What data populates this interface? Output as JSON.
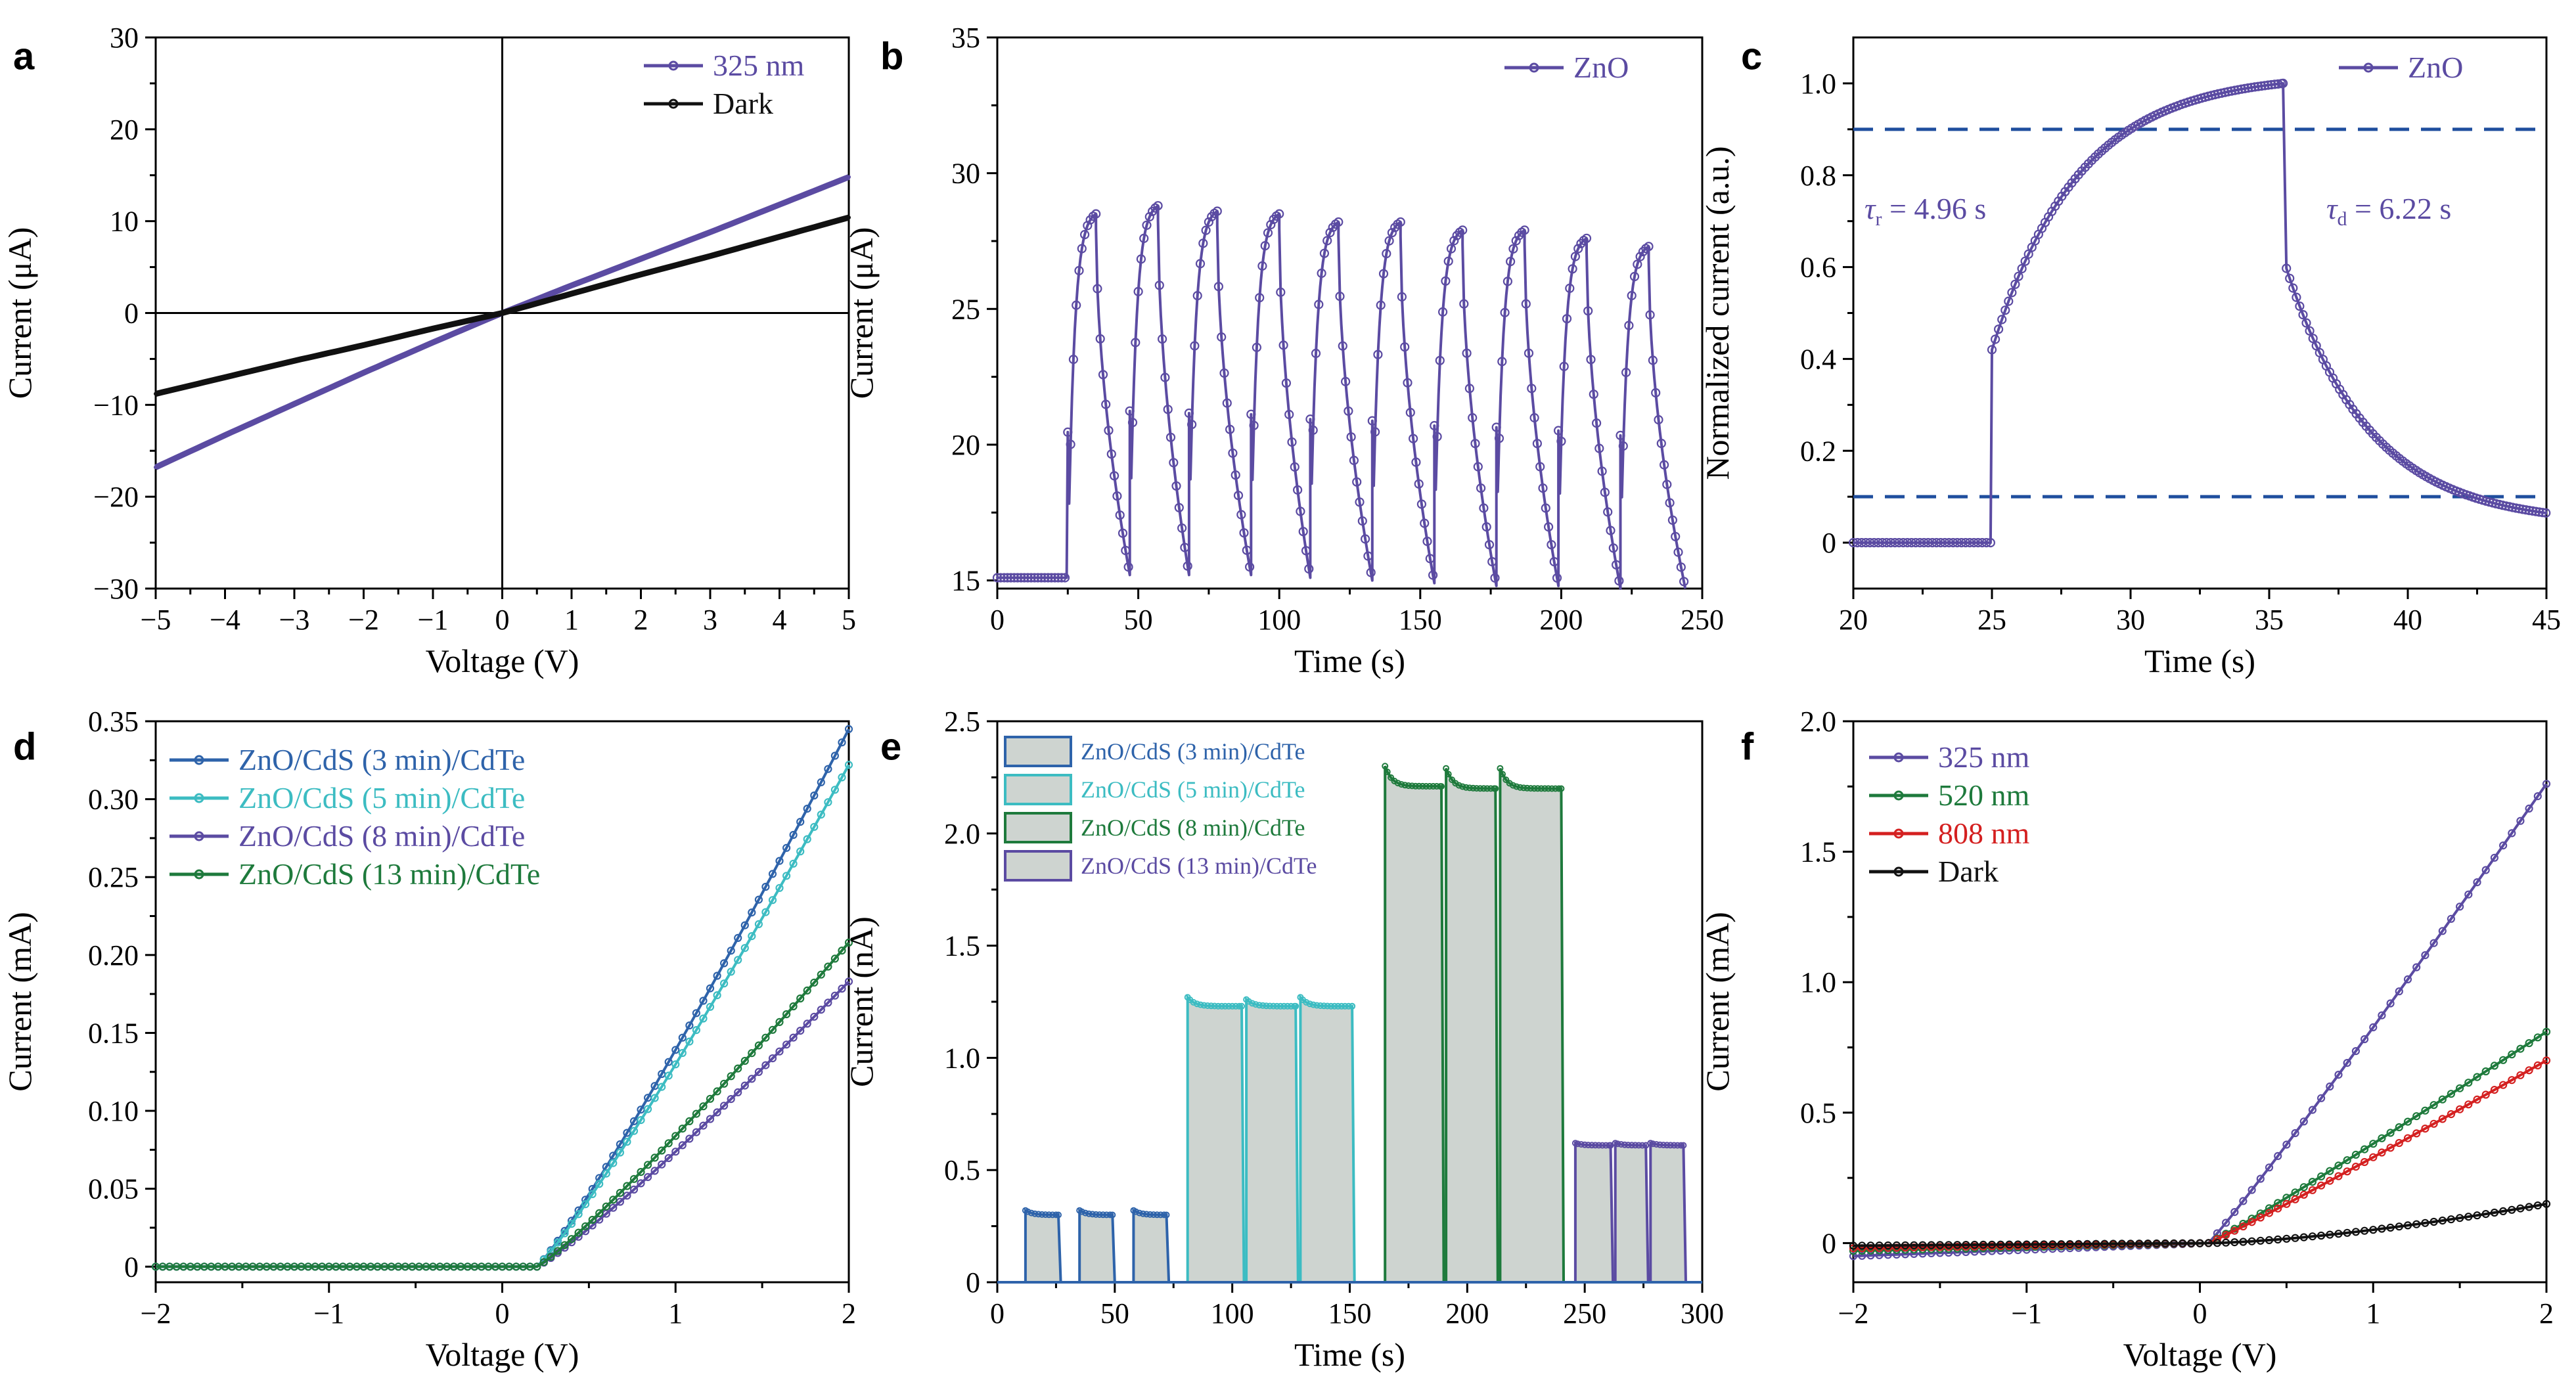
{
  "colors": {
    "purple": "#5B4BA2",
    "black": "#111111",
    "green": "#1E7A3C",
    "red": "#D42020",
    "blue": "#2E63AA",
    "teal": "#3CBCC2",
    "dash": "#1F4E9E",
    "fill": "#C9CFCB"
  },
  "chart_data": [
    {
      "panel": "a",
      "type": "line",
      "xlabel": "Voltage (V)",
      "ylabel": "Current (μA)",
      "xlim": [
        -5,
        5
      ],
      "ylim": [
        -30,
        30
      ],
      "xticks": [
        -5,
        -4,
        -3,
        -2,
        -1,
        0,
        1,
        2,
        3,
        4,
        5
      ],
      "xtick_labels": [
        "−5",
        "−4",
        "−3",
        "−2",
        "−1",
        "0",
        "1",
        "2",
        "3",
        "4",
        "5"
      ],
      "yticks": [
        -30,
        -20,
        -10,
        0,
        10,
        20,
        30
      ],
      "ytick_labels": [
        "−30",
        "−20",
        "−10",
        "0",
        "10",
        "20",
        "30"
      ],
      "series": [
        {
          "name": "325 nm",
          "color": "#5B4BA2",
          "x": [
            -5,
            -4,
            -3,
            -2,
            -1,
            0,
            1,
            2,
            3,
            4,
            5
          ],
          "y": [
            -16.8,
            -13.3,
            -9.9,
            -6.5,
            -3.2,
            0,
            3.0,
            5.9,
            8.8,
            11.8,
            14.8
          ]
        },
        {
          "name": "Dark",
          "color": "#111111",
          "x": [
            -5,
            -4,
            -3,
            -2,
            -1,
            0,
            1,
            2,
            3,
            4,
            5
          ],
          "y": [
            -8.8,
            -7.0,
            -5.2,
            -3.5,
            -1.7,
            0,
            2.1,
            4.2,
            6.2,
            8.3,
            10.4
          ]
        }
      ]
    },
    {
      "panel": "b",
      "type": "line",
      "xlabel": "Time (s)",
      "ylabel": "Current (μA)",
      "xlim": [
        0,
        250
      ],
      "ylim": [
        14.7,
        35
      ],
      "xticks": [
        0,
        50,
        100,
        150,
        200,
        250
      ],
      "xtick_labels": [
        "0",
        "50",
        "100",
        "150",
        "200",
        "250"
      ],
      "yticks": [
        15,
        20,
        25,
        30,
        35
      ],
      "ytick_labels": [
        "15",
        "20",
        "25",
        "30",
        "35"
      ],
      "baseline": 15.1,
      "pulses": [
        {
          "on": 25,
          "off": 35,
          "peak": 28.5,
          "end": 15.2
        },
        {
          "on": 47,
          "off": 57,
          "peak": 28.8,
          "end": 15.2
        },
        {
          "on": 68,
          "off": 78,
          "peak": 28.6,
          "end": 15.2
        },
        {
          "on": 90,
          "off": 100,
          "peak": 28.5,
          "end": 15.1
        },
        {
          "on": 111,
          "off": 121,
          "peak": 28.2,
          "end": 15.0
        },
        {
          "on": 133,
          "off": 143,
          "peak": 28.2,
          "end": 14.9
        },
        {
          "on": 155,
          "off": 165,
          "peak": 27.9,
          "end": 14.8
        },
        {
          "on": 177,
          "off": 187,
          "peak": 27.9,
          "end": 14.8
        },
        {
          "on": 199,
          "off": 209,
          "peak": 27.6,
          "end": 14.7
        },
        {
          "on": 221,
          "off": 231,
          "peak": 27.3,
          "end": 14.7
        }
      ],
      "series": [
        {
          "name": "ZnO",
          "color": "#5B4BA2"
        }
      ]
    },
    {
      "panel": "c",
      "type": "line",
      "xlabel": "Time (s)",
      "ylabel": "Normalized current (a.u.)",
      "xlim": [
        20,
        45
      ],
      "ylim": [
        -0.1,
        1.1
      ],
      "xticks": [
        20,
        25,
        30,
        35,
        40,
        45
      ],
      "xtick_labels": [
        "20",
        "25",
        "30",
        "35",
        "40",
        "45"
      ],
      "yticks": [
        0,
        0.2,
        0.4,
        0.6,
        0.8,
        1.0
      ],
      "ytick_labels": [
        "0",
        "0.2",
        "0.4",
        "0.6",
        "0.8",
        "1.0"
      ],
      "hlines": [
        0.9,
        0.1
      ],
      "rise_time": "τr = 4.96 s",
      "decay_time": "τd = 6.22 s",
      "tau_r": {
        "sym": "τ",
        "sub": "r",
        "rest": " = 4.96 s"
      },
      "tau_d": {
        "sym": "τ",
        "sub": "d",
        "rest": " = 6.22 s"
      },
      "on": 25,
      "off": 35.5,
      "series": [
        {
          "name": "ZnO",
          "color": "#5B4BA2"
        }
      ]
    },
    {
      "panel": "d",
      "type": "line",
      "xlabel": "Voltage (V)",
      "ylabel": "Current (mA)",
      "xlim": [
        -2,
        2
      ],
      "ylim": [
        -0.01,
        0.35
      ],
      "xticks": [
        -2,
        -1,
        0,
        1,
        2
      ],
      "xtick_labels": [
        "−2",
        "−1",
        "0",
        "1",
        "2"
      ],
      "yticks": [
        0,
        0.05,
        0.1,
        0.15,
        0.2,
        0.25,
        0.3,
        0.35
      ],
      "ytick_labels": [
        "0",
        "0.05",
        "0.10",
        "0.15",
        "0.20",
        "0.25",
        "0.30",
        "0.35"
      ],
      "series": [
        {
          "name": "ZnO/CdS (3 min)/CdTe",
          "color": "#2E63AA",
          "turn_on": 0.2,
          "y_end": 0.345
        },
        {
          "name": "ZnO/CdS (5 min)/CdTe",
          "color": "#3CBCC2",
          "turn_on": 0.2,
          "y_end": 0.322
        },
        {
          "name": "ZnO/CdS (8 min)/CdTe",
          "color": "#5B4BA2",
          "turn_on": 0.2,
          "y_end": 0.183
        },
        {
          "name": "ZnO/CdS (13 min)/CdTe",
          "color": "#1E7A3C",
          "turn_on": 0.2,
          "y_end": 0.208
        }
      ]
    },
    {
      "panel": "e",
      "type": "bar",
      "xlabel": "Time (s)",
      "ylabel": "Current (nA)",
      "xlim": [
        0,
        300
      ],
      "ylim": [
        0,
        2.5
      ],
      "xticks": [
        0,
        50,
        100,
        150,
        200,
        250,
        300
      ],
      "xtick_labels": [
        "0",
        "50",
        "100",
        "150",
        "200",
        "250",
        "300"
      ],
      "yticks": [
        0,
        0.5,
        1.0,
        1.5,
        2.0,
        2.5
      ],
      "ytick_labels": [
        "0",
        "0.5",
        "1.0",
        "1.5",
        "2.0",
        "2.5"
      ],
      "series": [
        {
          "name": "ZnO/CdS (3 min)/CdTe",
          "color": "#2E63AA",
          "pulses": [
            [
              12,
              26,
              0.32,
              0.3
            ],
            [
              35,
              49,
              0.32,
              0.3
            ],
            [
              58,
              72,
              0.32,
              0.3
            ]
          ]
        },
        {
          "name": "ZnO/CdS (5 min)/CdTe",
          "color": "#3CBCC2",
          "pulses": [
            [
              81,
              104,
              1.27,
              1.23
            ],
            [
              106,
              127,
              1.26,
              1.23
            ],
            [
              129,
              151,
              1.27,
              1.23
            ]
          ]
        },
        {
          "name": "ZnO/CdS (8 min)/CdTe",
          "color": "#1E7A3C",
          "pulses": [
            [
              165,
              189,
              2.3,
              2.21
            ],
            [
              191,
              212,
              2.29,
              2.2
            ],
            [
              214,
              240,
              2.29,
              2.2
            ]
          ]
        },
        {
          "name": "ZnO/CdS (13 min)/CdTe",
          "color": "#5B4BA2",
          "pulses": [
            [
              246,
              261,
              0.62,
              0.61
            ],
            [
              263,
              276,
              0.62,
              0.61
            ],
            [
              278,
              292,
              0.62,
              0.61
            ]
          ]
        }
      ]
    },
    {
      "panel": "f",
      "type": "line",
      "xlabel": "Voltage (V)",
      "ylabel": "Current (mA)",
      "xlim": [
        -2,
        2
      ],
      "ylim": [
        -0.15,
        2.0
      ],
      "xticks": [
        -2,
        -1,
        0,
        1,
        2
      ],
      "xtick_labels": [
        "−2",
        "−1",
        "0",
        "1",
        "2"
      ],
      "yticks": [
        0,
        0.5,
        1.0,
        1.5,
        2.0
      ],
      "ytick_labels": [
        "0",
        "0.5",
        "1.0",
        "1.5",
        "2.0"
      ],
      "series": [
        {
          "name": "325 nm",
          "color": "#5B4BA2",
          "y_start": -0.05,
          "y_end": 1.76
        },
        {
          "name": "520 nm",
          "color": "#1E7A3C",
          "y_start": -0.03,
          "y_end": 0.81
        },
        {
          "name": "808 nm",
          "color": "#D42020",
          "y_start": -0.02,
          "y_end": 0.7
        },
        {
          "name": "Dark",
          "color": "#111111",
          "y_start": -0.01,
          "y_end": 0.15
        }
      ]
    }
  ]
}
